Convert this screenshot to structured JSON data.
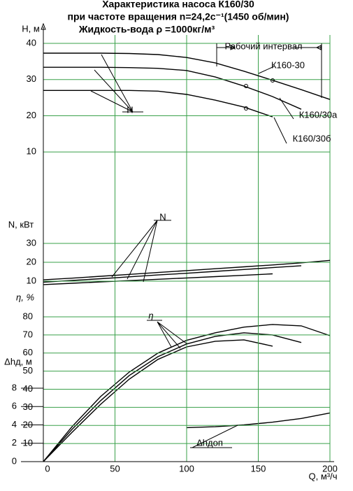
{
  "chart_data": [
    {
      "type": "line",
      "title": "Характеристика насоса К160/30",
      "subtitle": [
        "при частоте вращения n=24,2с⁻¹(1450 об/мин)",
        "Жидкость-вода ρ =1000кг/м³"
      ],
      "ylabel": "H, м",
      "annotations": [
        "Рабочий интервал",
        "H"
      ],
      "x": [
        0,
        20,
        40,
        60,
        80,
        100,
        120,
        140,
        160,
        180,
        200
      ],
      "xlim": [
        0,
        200
      ],
      "ylim": [
        0,
        40
      ],
      "yticks": [
        10,
        20,
        30,
        40
      ],
      "grid": true,
      "series": [
        {
          "name": "К160-30",
          "color": "#000000",
          "values": [
            37.3,
            37.3,
            37.3,
            37.2,
            36.9,
            36.1,
            34.6,
            32.3,
            29.8,
            27.2,
            24.5
          ]
        },
        {
          "name": "К160/30а",
          "color": "#000000",
          "values": [
            33.4,
            33.4,
            33.4,
            33.3,
            33.1,
            32.5,
            30.7,
            28.2,
            25.3,
            21.8,
            null
          ]
        },
        {
          "name": "К160/30б",
          "color": "#000000",
          "values": [
            27.0,
            27.0,
            27.0,
            27.0,
            26.8,
            25.9,
            24.3,
            22.4,
            19.7,
            null,
            null
          ]
        }
      ]
    },
    {
      "type": "line",
      "ylabel": "N, кВт",
      "annotations": [
        "N"
      ],
      "x": [
        0,
        20,
        40,
        60,
        80,
        100,
        120,
        140,
        160,
        180,
        200
      ],
      "xlim": [
        0,
        200
      ],
      "ylim": [
        0,
        30
      ],
      "yticks": [
        10,
        20,
        30
      ],
      "grid": true,
      "series": [
        {
          "color": "#000000",
          "values": [
            10.7,
            11.6,
            12.6,
            13.6,
            14.6,
            15.6,
            16.6,
            17.6,
            18.6,
            19.7,
            21.0
          ]
        },
        {
          "color": "#000000",
          "values": [
            9.5,
            10.4,
            11.3,
            12.3,
            13.3,
            14.2,
            15.2,
            16.2,
            17.2,
            18.2,
            null
          ]
        },
        {
          "color": "#000000",
          "values": [
            8.2,
            8.9,
            9.6,
            10.3,
            11.0,
            11.7,
            12.4,
            13.1,
            13.9,
            null,
            null
          ]
        }
      ]
    },
    {
      "type": "line",
      "ylabel": "η, %",
      "y2label": "Δhд, м",
      "annotations": [
        "η",
        "Δhдоп"
      ],
      "xlabel": "Q, м³/ч",
      "x": [
        0,
        20,
        40,
        60,
        80,
        100,
        120,
        140,
        160,
        180,
        200
      ],
      "xlim": [
        0,
        200
      ],
      "xticks": [
        0,
        50,
        100,
        150,
        200
      ],
      "ylim": [
        0,
        80
      ],
      "yticks": [
        10,
        20,
        30,
        40,
        50,
        60,
        70,
        80
      ],
      "y2lim": [
        0,
        8
      ],
      "y2ticks": [
        0,
        2,
        4,
        6,
        8
      ],
      "grid": true,
      "series": [
        {
          "color": "#000000",
          "values": [
            0,
            19.3,
            36,
            49.5,
            60,
            67,
            71.2,
            74.3,
            75.8,
            75,
            69.6
          ]
        },
        {
          "color": "#000000",
          "values": [
            0,
            17.8,
            33.7,
            47.6,
            58,
            65,
            69.2,
            71.2,
            70,
            65.8,
            null
          ]
        },
        {
          "color": "#000000",
          "values": [
            0,
            16.2,
            31.7,
            45.6,
            56.5,
            63.4,
            66.5,
            67.3,
            63.8,
            null,
            null
          ]
        },
        {
          "color": "#000000",
          "axis": "y2",
          "values": [
            null,
            null,
            null,
            null,
            null,
            3.7,
            3.8,
            4.0,
            4.3,
            4.7,
            5.3
          ]
        }
      ]
    }
  ]
}
